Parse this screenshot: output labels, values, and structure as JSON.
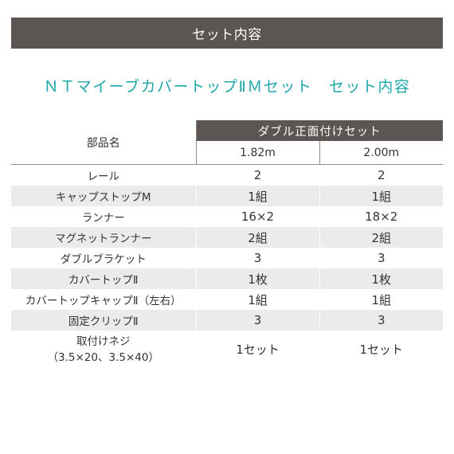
{
  "banner": {
    "label": "セット内容"
  },
  "title": "ＮＴマイーブカバートップⅡＭセット　セット内容",
  "table": {
    "name_header": "部品名",
    "set_header": "ダブル正面付けセット",
    "sizes": [
      "1.82m",
      "2.00m"
    ],
    "rows": [
      {
        "name": "レール",
        "v1": "2",
        "v2": "2"
      },
      {
        "name": "キャップストップM",
        "v1": "1組",
        "v2": "1組"
      },
      {
        "name": "ランナー",
        "v1": "16×2",
        "v2": "18×2"
      },
      {
        "name": "マグネットランナー",
        "v1": "2組",
        "v2": "2組"
      },
      {
        "name": "ダブルブラケット",
        "v1": "3",
        "v2": "3"
      },
      {
        "name": "カバートップⅡ",
        "v1": "1枚",
        "v2": "1枚"
      },
      {
        "name": "カバートップキャップⅡ（左右）",
        "v1": "1組",
        "v2": "1組"
      },
      {
        "name": "固定クリップⅡ",
        "v1": "3",
        "v2": "3"
      },
      {
        "name": "取付けネジ",
        "name2": "（3.5×20、3.5×40）",
        "v1": "1セット",
        "v2": "1セット"
      }
    ]
  }
}
